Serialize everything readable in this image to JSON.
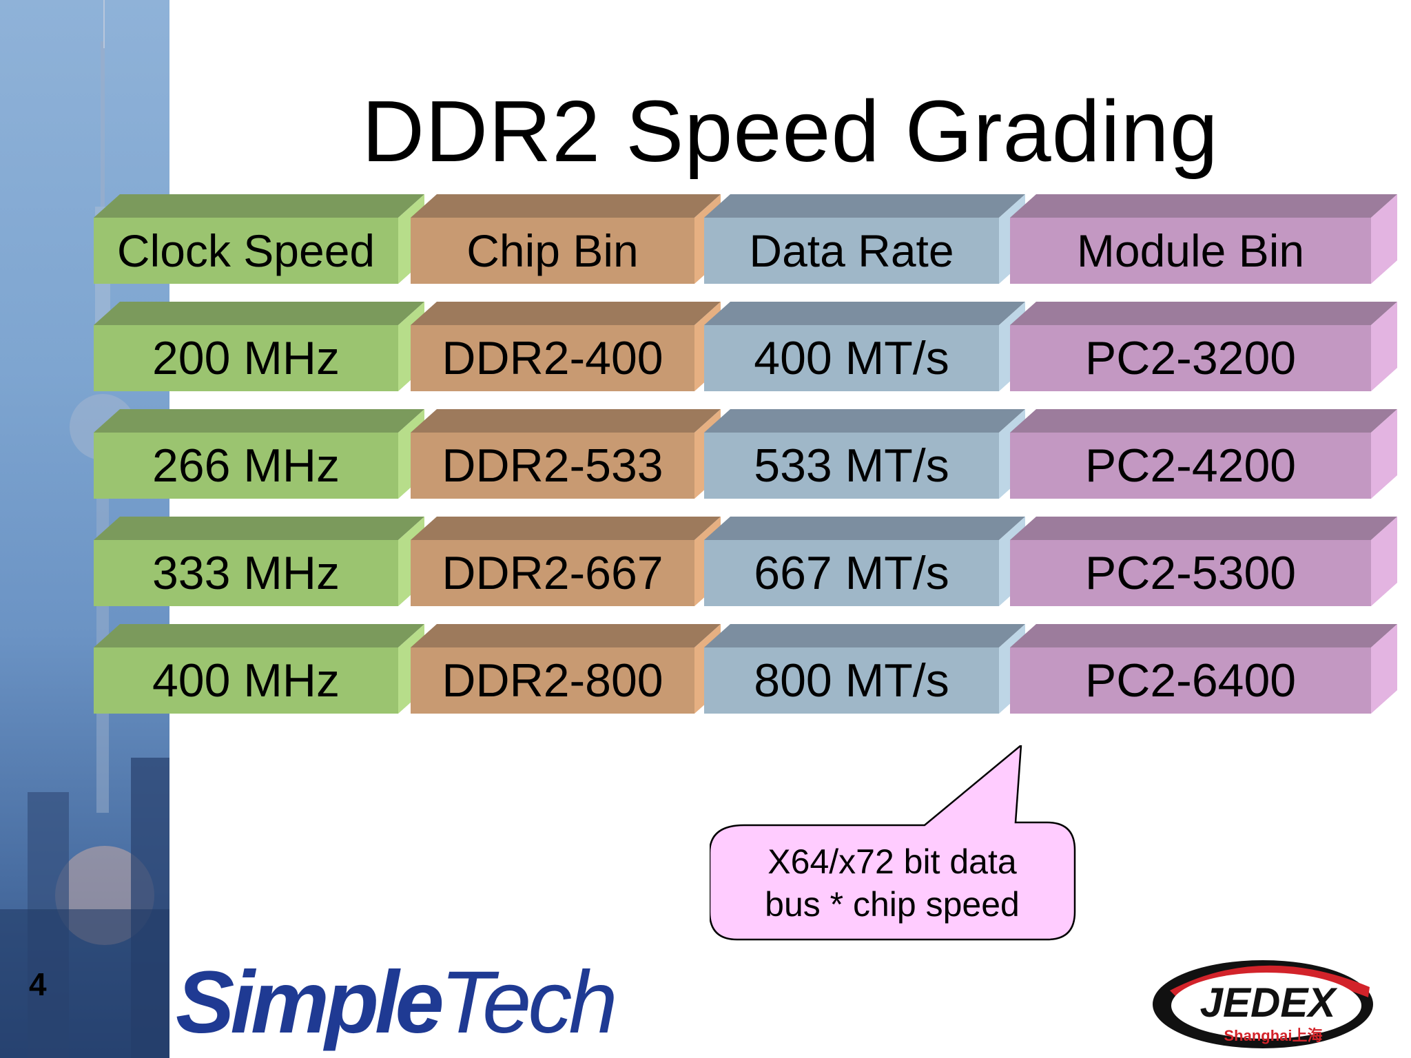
{
  "slide": {
    "title": "DDR2 Speed Grading",
    "page_number": "4"
  },
  "table": {
    "columns": [
      {
        "name": "Clock Speed",
        "colors": {
          "face": "#9bc470",
          "top": "#7b9a5c",
          "side": "#b7dd8a"
        }
      },
      {
        "name": "Chip Bin",
        "colors": {
          "face": "#c89a72",
          "top": "#9d7a5c",
          "side": "#e6b082"
        }
      },
      {
        "name": "Data Rate",
        "colors": {
          "face": "#9fb7c8",
          "top": "#7c8ea0",
          "side": "#bed6e6"
        }
      },
      {
        "name": "Module Bin",
        "colors": {
          "face": "#c398c2",
          "top": "#9c7c9c",
          "side": "#e3b4e1"
        }
      }
    ],
    "rows": [
      [
        "200 MHz",
        "DDR2-400",
        "400 MT/s",
        "PC2-3200"
      ],
      [
        "266 MHz",
        "DDR2-533",
        "533 MT/s",
        "PC2-4200"
      ],
      [
        "333 MHz",
        "DDR2-667",
        "667 MT/s",
        "PC2-5300"
      ],
      [
        "400 MHz",
        "DDR2-800",
        "800 MT/s",
        "PC2-6400"
      ]
    ]
  },
  "callout": {
    "line1": "X64/x72 bit data",
    "line2": "bus * chip speed",
    "fill": "#ffccff",
    "stroke": "#000000"
  },
  "logos": {
    "simpletech_s": "S",
    "simpletech_imple": "imple",
    "simpletech_tech": "Tech",
    "jedex": "JEDEX",
    "jedex_sub": "Shanghai上海"
  }
}
